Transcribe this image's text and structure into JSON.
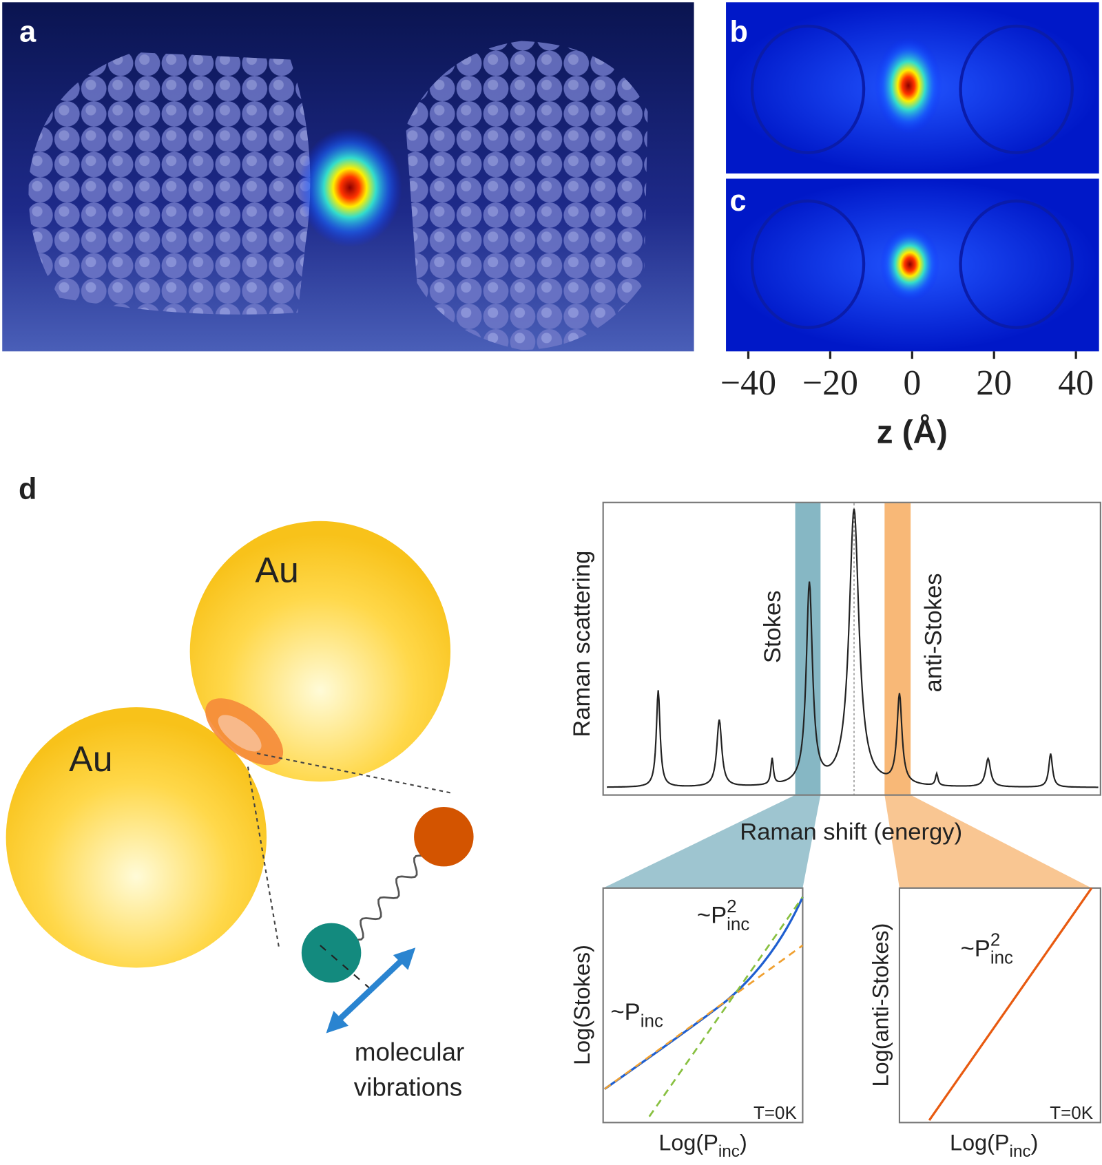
{
  "panel_a": {
    "label": "a"
  },
  "panel_b": {
    "label": "b"
  },
  "panel_c": {
    "label": "c",
    "x_ticks": [
      "−40",
      "−20",
      "0",
      "20",
      "40"
    ],
    "x_axis_label": "z (Å)"
  },
  "panel_d": {
    "label": "d",
    "schematic": {
      "particles": [
        "Au",
        "Au"
      ],
      "caption": [
        "molecular",
        "vibrations"
      ]
    },
    "spectrum": {
      "y_label": "Raman scattering",
      "x_label": "Raman shift (energy)",
      "stokes": "Stokes",
      "anti_stokes": "anti-Stokes"
    },
    "stokes_plot": {
      "y_label": "Log(Stokes)",
      "x_label": {
        "main": "Log(P",
        "sub": "inc",
        "end": ")"
      },
      "annotations": [
        {
          "main": "~P",
          "sup": "2",
          "sub": "inc"
        },
        {
          "main": "~P",
          "sub": "inc"
        }
      ],
      "note": "T=0K"
    },
    "anti_stokes_plot": {
      "y_label": "Log(anti-Stokes)",
      "x_label": {
        "main": "Log(P",
        "sub": "inc",
        "end": ")"
      },
      "annotations": [
        {
          "main": "~P",
          "sup": "2",
          "sub": "inc"
        }
      ],
      "note": "T=0K"
    }
  }
}
